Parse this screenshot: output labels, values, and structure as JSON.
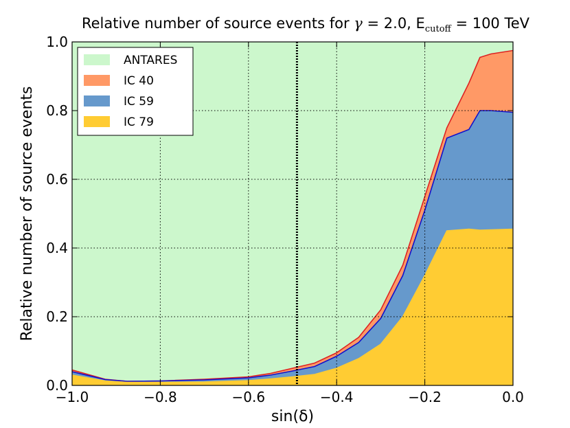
{
  "chart_data": {
    "type": "area",
    "title": {
      "prefix": "Relative number of source events for ",
      "gamma_symbol": "γ",
      "gamma_value": " = 2.0, E",
      "subscript": "cutoff",
      "suffix": " = 100 TeV"
    },
    "xlabel": "sin(δ)",
    "ylabel": "Relative number of source events",
    "xlim": [
      -1.0,
      0.0
    ],
    "ylim": [
      0.0,
      1.0
    ],
    "xticks": [
      -1.0,
      -0.8,
      -0.6,
      -0.4,
      -0.2,
      0.0
    ],
    "xtick_labels": [
      "−1.0",
      "−0.8",
      "−0.6",
      "−0.4",
      "−0.2",
      "0.0"
    ],
    "yticks": [
      0.0,
      0.2,
      0.4,
      0.6,
      0.8,
      1.0
    ],
    "ytick_labels": [
      "0.0",
      "0.2",
      "0.4",
      "0.6",
      "0.8",
      "1.0"
    ],
    "grid": true,
    "legend_position": "top-left",
    "vertical_marker_x": -0.49,
    "x": [
      -1.0,
      -0.925,
      -0.875,
      -0.8,
      -0.7,
      -0.6,
      -0.55,
      -0.5,
      -0.45,
      -0.4,
      -0.35,
      -0.3,
      -0.25,
      -0.2,
      -0.15,
      -0.1,
      -0.075,
      -0.05,
      0.0
    ],
    "series": [
      {
        "name": "ANTARES",
        "color": "#ccf7cc",
        "values": [
          1,
          1,
          1,
          1,
          1,
          1,
          1,
          1,
          1,
          1,
          1,
          1,
          1,
          1,
          1,
          1,
          1,
          1,
          1
        ]
      },
      {
        "name": "IC 40",
        "color": "#ff9966",
        "values": [
          0.045,
          0.018,
          0.012,
          0.013,
          0.018,
          0.025,
          0.035,
          0.05,
          0.065,
          0.095,
          0.14,
          0.22,
          0.35,
          0.55,
          0.75,
          0.88,
          0.955,
          0.965,
          0.975
        ]
      },
      {
        "name": "IC 59",
        "color": "#6699cc",
        "values": [
          0.04,
          0.017,
          0.012,
          0.013,
          0.016,
          0.022,
          0.03,
          0.042,
          0.055,
          0.085,
          0.125,
          0.195,
          0.32,
          0.51,
          0.72,
          0.745,
          0.8,
          0.8,
          0.795
        ]
      },
      {
        "name": "IC 79",
        "color": "#ffcc33",
        "values": [
          0.03,
          0.013,
          0.009,
          0.009,
          0.01,
          0.014,
          0.019,
          0.025,
          0.032,
          0.05,
          0.078,
          0.12,
          0.2,
          0.32,
          0.45,
          0.455,
          0.452,
          0.453,
          0.455
        ]
      }
    ],
    "edge_colors": {
      "IC 40": "#dd2222",
      "IC 59": "#1111cc",
      "IC 79": "#ffcc33"
    }
  }
}
